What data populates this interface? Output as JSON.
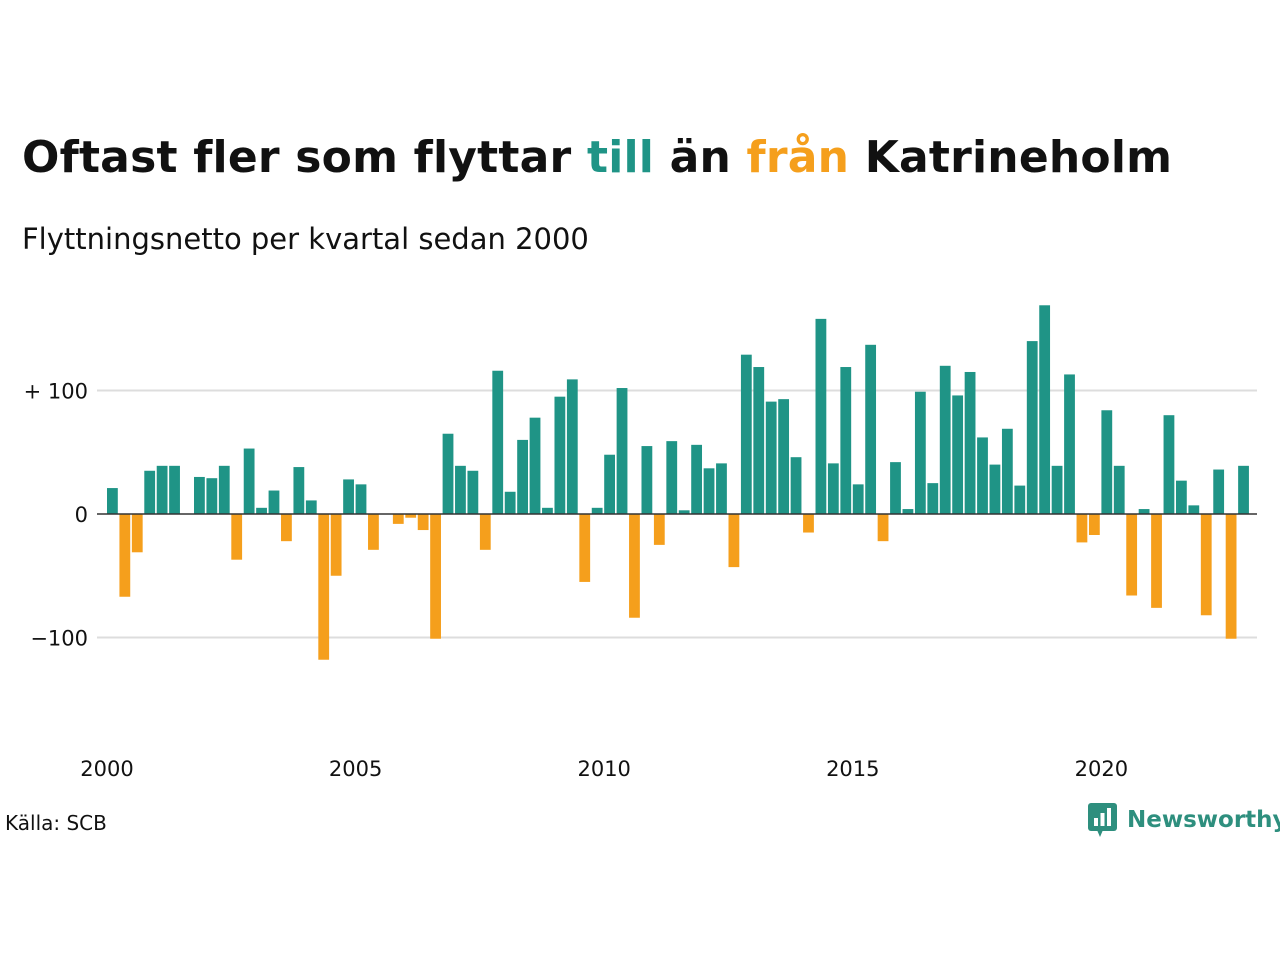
{
  "title": {
    "part1": "Oftast fler som flyttar ",
    "till": "till",
    "part2": " än ",
    "fran": "från",
    "part3": " Katrineholm"
  },
  "subtitle": "Flyttningsnetto per kvartal sedan 2000",
  "source": "Källa: SCB",
  "brand": {
    "name": "Newsworthy",
    "icon": "newsworthy-logo-icon"
  },
  "colors": {
    "positive": "#1f9486",
    "negative": "#f59f1c",
    "grid": "#dddddd",
    "axis": "#333333"
  },
  "chart_data": {
    "type": "bar",
    "x_start": "2000 Q1",
    "ylim": [
      -150,
      180
    ],
    "yticks": [
      100,
      0,
      -100
    ],
    "ytick_labels": [
      "+ 100",
      "0",
      "−100"
    ],
    "xtick_labels": [
      "2000",
      "2005",
      "2010",
      "2015",
      "2020"
    ],
    "grid": true,
    "legend": "none",
    "values": [
      21,
      -67,
      -31,
      35,
      39,
      39,
      0,
      30,
      29,
      39,
      -37,
      53,
      5,
      19,
      -22,
      38,
      11,
      -118,
      -50,
      28,
      24,
      -29,
      0,
      -8,
      -3,
      -13,
      -101,
      65,
      39,
      35,
      -29,
      116,
      18,
      60,
      78,
      5,
      95,
      109,
      -55,
      5,
      48,
      102,
      -84,
      55,
      -25,
      59,
      3,
      56,
      37,
      41,
      -43,
      129,
      119,
      91,
      93,
      46,
      -15,
      158,
      41,
      119,
      24,
      137,
      -22,
      42,
      4,
      99,
      25,
      120,
      96,
      115,
      62,
      40,
      69,
      23,
      140,
      169,
      39,
      113,
      -23,
      -17,
      84,
      39,
      -66,
      4,
      -76,
      80,
      27,
      7,
      -82,
      36,
      -101,
      39
    ]
  }
}
